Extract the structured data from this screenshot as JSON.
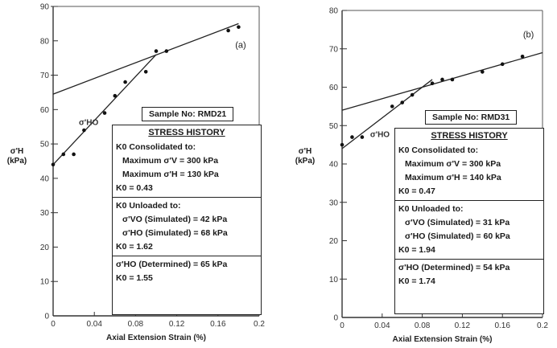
{
  "chart_data": [
    {
      "type": "scatter",
      "panel_label": "(a)",
      "xlabel": "Axial Extension Strain (%)",
      "ylabel": "σ'H (kPa)",
      "xlim": [
        0,
        0.2
      ],
      "ylim": [
        0,
        90
      ],
      "xticks": [
        "0",
        "0.04",
        "0.08",
        "0.12",
        "0.16",
        "0.2"
      ],
      "yticks": [
        "0",
        "10",
        "20",
        "30",
        "40",
        "50",
        "60",
        "70",
        "80",
        "90"
      ],
      "series": [
        {
          "values": [
            [
              0.0,
              44
            ],
            [
              0.01,
              47
            ],
            [
              0.02,
              47
            ],
            [
              0.03,
              54
            ],
            [
              0.05,
              59
            ],
            [
              0.06,
              64
            ],
            [
              0.07,
              68
            ],
            [
              0.09,
              71
            ],
            [
              0.1,
              77
            ],
            [
              0.11,
              77
            ],
            [
              0.17,
              83
            ],
            [
              0.18,
              84
            ]
          ]
        }
      ],
      "trend_lines": [
        {
          "from": [
            0.0,
            64.5
          ],
          "to": [
            0.18,
            85
          ]
        },
        {
          "from": [
            0.0,
            44
          ],
          "to": [
            0.1,
            76
          ]
        }
      ],
      "annotation": "σ'HO",
      "sample": "Sample No: RMD21",
      "stress_history": {
        "title": "STRESS HISTORY",
        "consolidated": "K0 Consolidated to:",
        "max_v": "Maximum σ'V = 300 kPa",
        "max_h": "Maximum σ'H = 130 kPa",
        "k0_1": "K0 = 0.43",
        "unloaded": "K0 Unloaded to:",
        "vo_sim": "σ'VO (Simulated) = 42 kPa",
        "ho_sim": "σ'HO (Simulated) = 68 kPa",
        "k0_2": "K0 = 1.62",
        "ho_det": "σ'HO (Determined) = 65 kPa",
        "k0_3": "K0 = 1.55"
      }
    },
    {
      "type": "scatter",
      "panel_label": "(b)",
      "xlabel": "Axial Extension Strain (%)",
      "ylabel": "σ'H (kPa)",
      "xlim": [
        0,
        0.2
      ],
      "ylim": [
        0,
        80
      ],
      "xticks": [
        "0",
        "0.04",
        "0.08",
        "0.12",
        "0.16",
        "0.2"
      ],
      "yticks": [
        "0",
        "10",
        "20",
        "30",
        "40",
        "50",
        "60",
        "70",
        "80"
      ],
      "series": [
        {
          "values": [
            [
              0.0,
              45
            ],
            [
              0.01,
              47
            ],
            [
              0.02,
              47
            ],
            [
              0.05,
              55
            ],
            [
              0.06,
              56
            ],
            [
              0.07,
              58
            ],
            [
              0.09,
              61
            ],
            [
              0.1,
              62
            ],
            [
              0.11,
              62
            ],
            [
              0.14,
              64
            ],
            [
              0.16,
              66
            ],
            [
              0.18,
              68
            ]
          ]
        }
      ],
      "trend_lines": [
        {
          "from": [
            0.0,
            54
          ],
          "to": [
            0.2,
            69
          ]
        },
        {
          "from": [
            0.0,
            44
          ],
          "to": [
            0.09,
            62
          ]
        }
      ],
      "annotation": "σ'HO",
      "sample": "Sample No: RMD31",
      "stress_history": {
        "title": "STRESS HISTORY",
        "consolidated": "K0 Consolidated to:",
        "max_v": "Maximum σ'V = 300 kPa",
        "max_h": "Maximum σ'H = 140 kPa",
        "k0_1": "K0 = 0.47",
        "unloaded": "K0 Unloaded to:",
        "vo_sim": "σ'VO (Simulated) = 31 kPa",
        "ho_sim": "σ'HO (Simulated) = 60 kPa",
        "k0_2": "K0 = 1.94",
        "ho_det": "σ'HO (Determined) = 54 kPa",
        "k0_3": "K0 = 1.74"
      }
    }
  ]
}
